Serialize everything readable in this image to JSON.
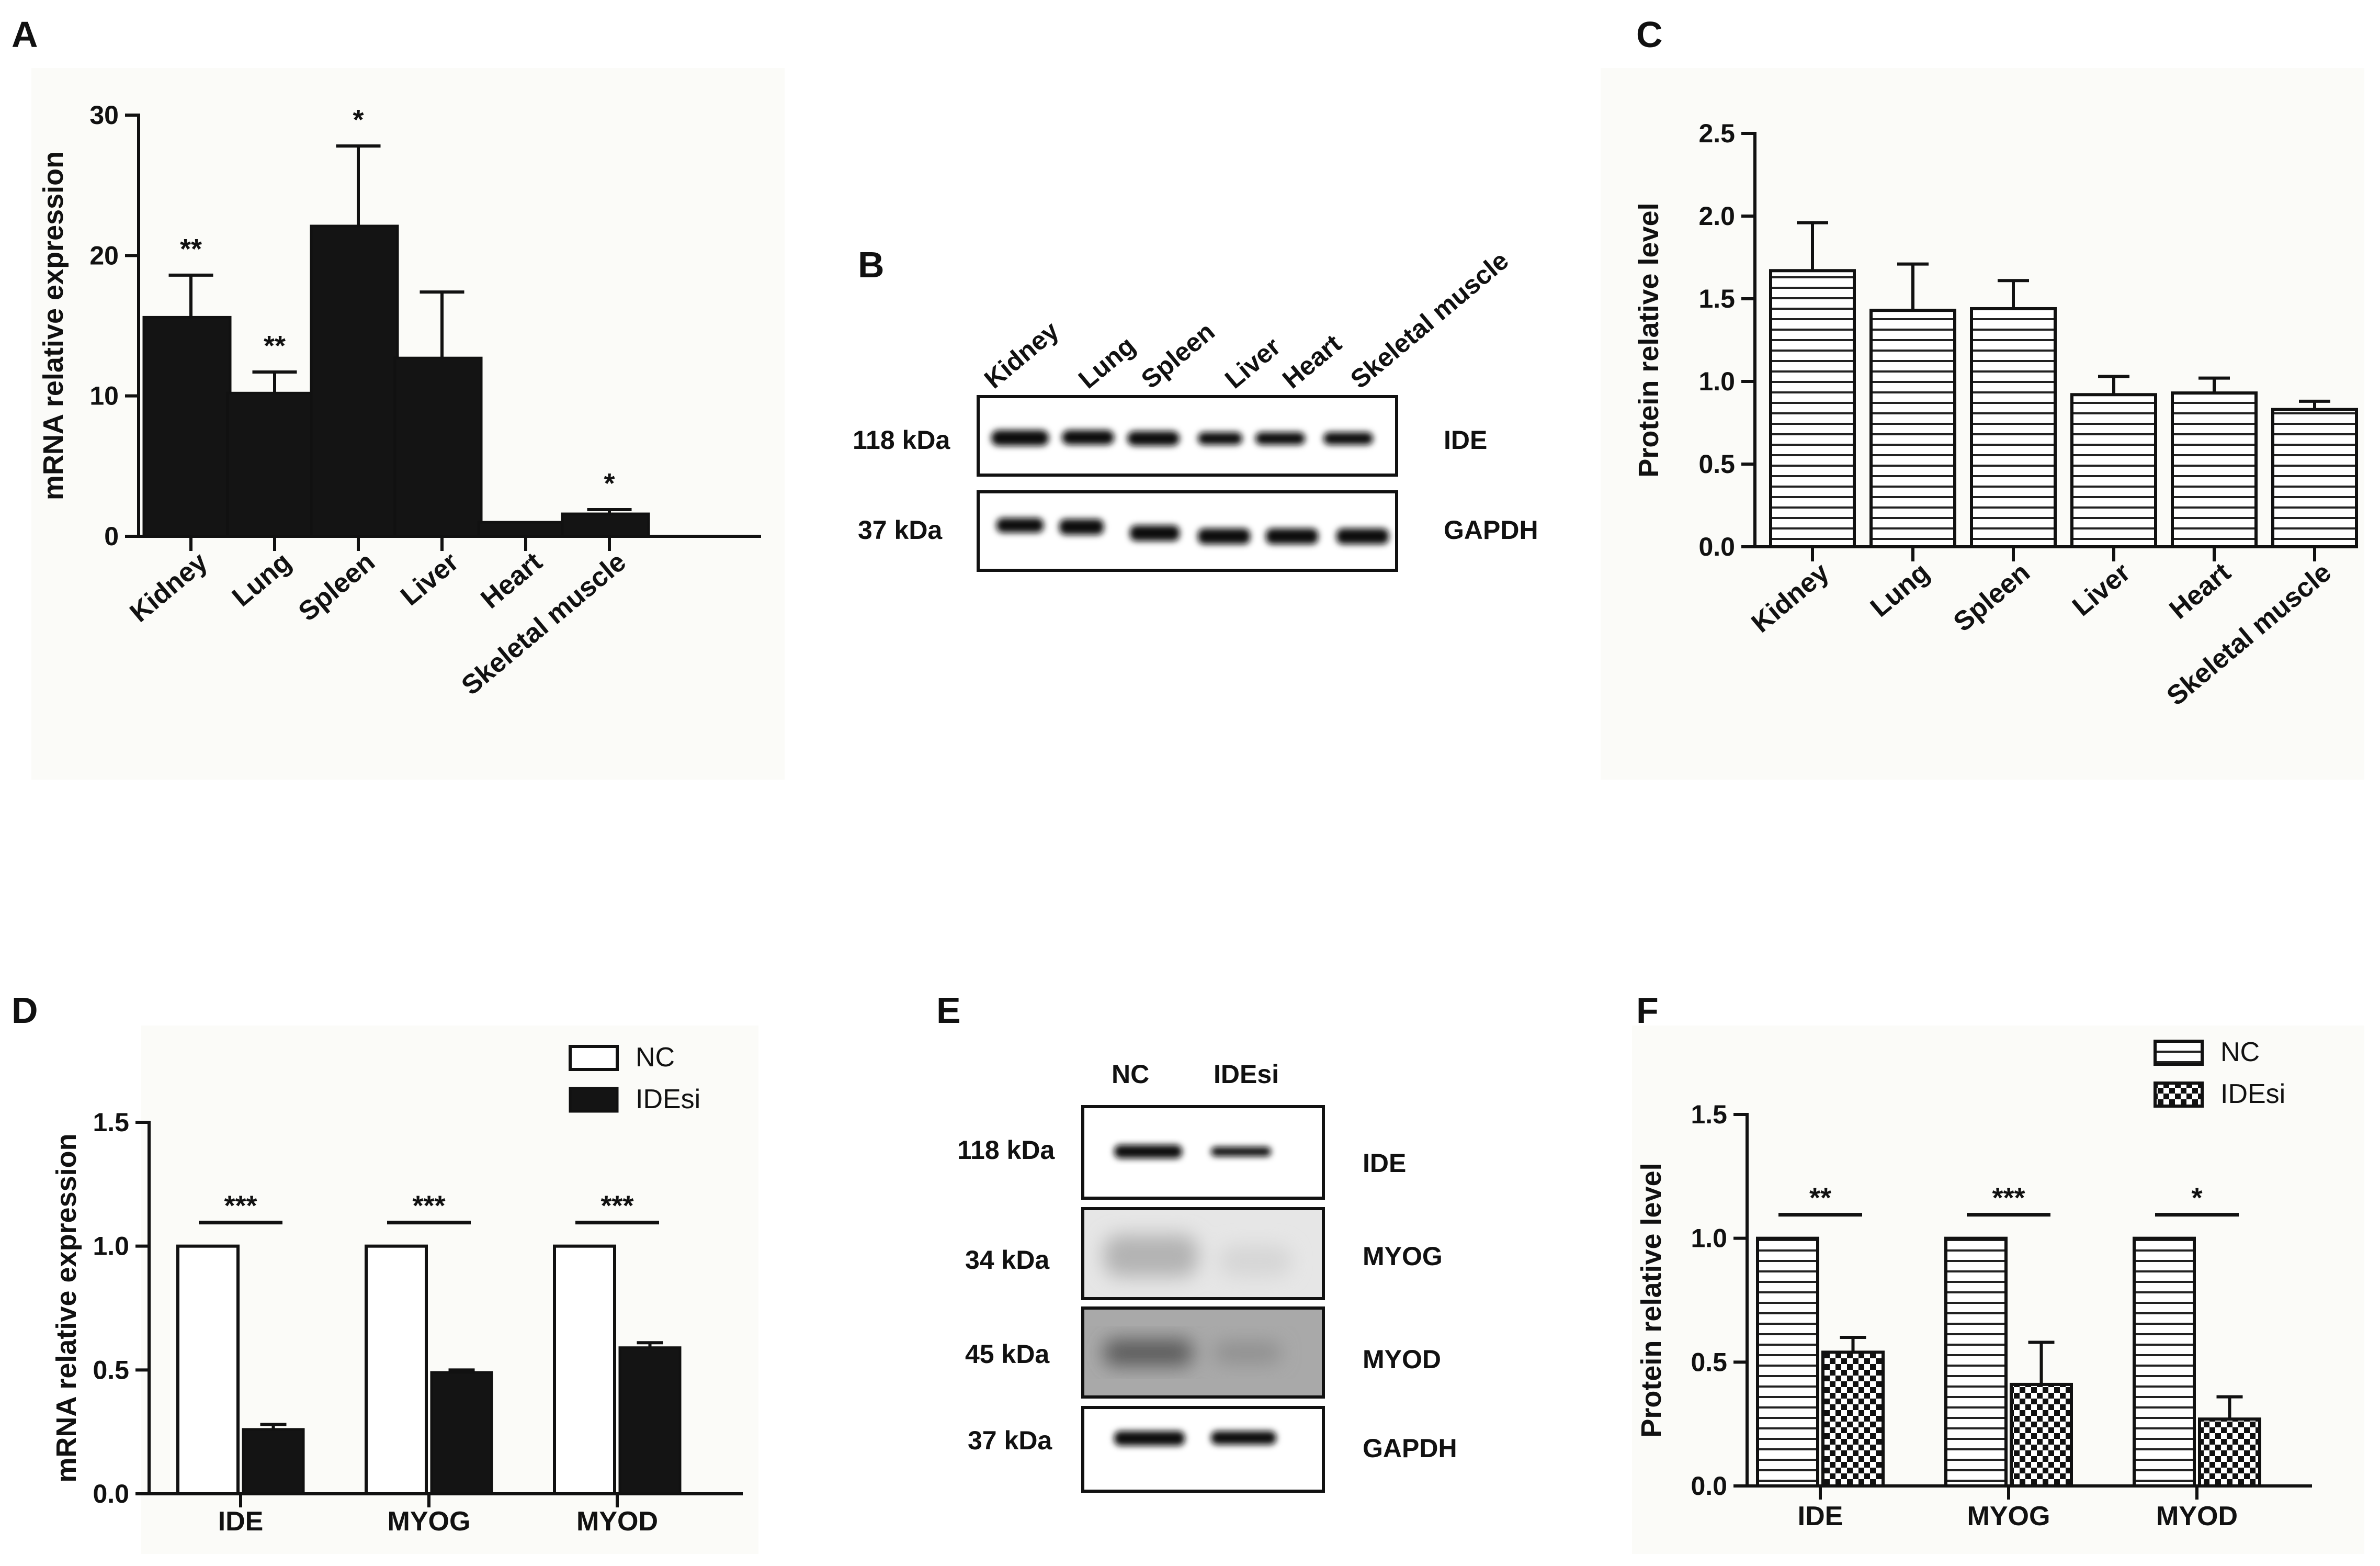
{
  "panels": {
    "A": "A",
    "B": "B",
    "C": "C",
    "D": "D",
    "E": "E",
    "F": "F"
  },
  "chart_data": [
    {
      "id": "A",
      "type": "bar",
      "ylabel": "mRNA relative expression",
      "ylim": [
        0,
        30
      ],
      "yticks": [
        "0",
        "10",
        "20",
        "30"
      ],
      "categories": [
        "Kidney",
        "Lung",
        "Spleen",
        "Liver",
        "Heart",
        "Skeletal muscle"
      ],
      "values": [
        15.6,
        10.2,
        22.1,
        12.7,
        1.0,
        1.6
      ],
      "errors": [
        3.0,
        1.5,
        5.7,
        4.7,
        0.0,
        0.3
      ],
      "stars": [
        "**",
        "**",
        "*",
        "",
        "",
        "*"
      ],
      "style": "solid black bars"
    },
    {
      "id": "C",
      "type": "bar",
      "ylabel": "Protein relative level",
      "ylim": [
        0,
        2.5
      ],
      "yticks": [
        "0.0",
        "0.5",
        "1.0",
        "1.5",
        "2.0",
        "2.5"
      ],
      "categories": [
        "Kidney",
        "Lung",
        "Spleen",
        "Liver",
        "Heart",
        "Skeletal muscle"
      ],
      "values": [
        1.67,
        1.43,
        1.44,
        0.92,
        0.93,
        0.83
      ],
      "errors": [
        0.29,
        0.28,
        0.17,
        0.11,
        0.09,
        0.05
      ],
      "style": "horizontal stripe bars"
    },
    {
      "id": "D",
      "type": "bar",
      "ylabel": "mRNA relative expression",
      "ylim": [
        0,
        1.5
      ],
      "yticks": [
        "0.0",
        "0.5",
        "1.0",
        "1.5"
      ],
      "categories": [
        "IDE",
        "MYOG",
        "MYOD"
      ],
      "series": [
        {
          "name": "NC",
          "values": [
            1.0,
            1.0,
            1.0
          ],
          "errors": [
            0,
            0,
            0
          ]
        },
        {
          "name": "IDEsi",
          "values": [
            0.26,
            0.49,
            0.59
          ],
          "errors": [
            0.02,
            0.01,
            0.02
          ]
        }
      ],
      "stars": [
        "***",
        "***",
        "***"
      ],
      "legend": "top-right"
    },
    {
      "id": "F",
      "type": "bar",
      "ylabel": "Protein relative level",
      "ylim": [
        0,
        1.5
      ],
      "yticks": [
        "0.0",
        "0.5",
        "1.0",
        "1.5"
      ],
      "categories": [
        "IDE",
        "MYOG",
        "MYOD"
      ],
      "series": [
        {
          "name": "NC",
          "values": [
            1.0,
            1.0,
            1.0
          ],
          "errors": [
            0,
            0,
            0
          ]
        },
        {
          "name": "IDEsi",
          "values": [
            0.54,
            0.41,
            0.27
          ],
          "errors": [
            0.06,
            0.17,
            0.09
          ]
        }
      ],
      "stars": [
        "**",
        "***",
        "*"
      ],
      "legend": "top-right"
    }
  ],
  "blots": {
    "B": {
      "lanes": [
        "Kidney",
        "Lung",
        "Spleen",
        "Liver",
        "Heart",
        "Skeletal muscle"
      ],
      "rows": [
        {
          "size": "118 kDa",
          "protein": "IDE"
        },
        {
          "size": "37 kDa",
          "protein": "GAPDH"
        }
      ]
    },
    "E": {
      "lanes": [
        "NC",
        "IDEsi"
      ],
      "rows": [
        {
          "size": "118 kDa",
          "protein": "IDE"
        },
        {
          "size": "34 kDa",
          "protein": "MYOG"
        },
        {
          "size": "45 kDa",
          "protein": "MYOD"
        },
        {
          "size": "37 kDa",
          "protein": "GAPDH"
        }
      ]
    }
  }
}
